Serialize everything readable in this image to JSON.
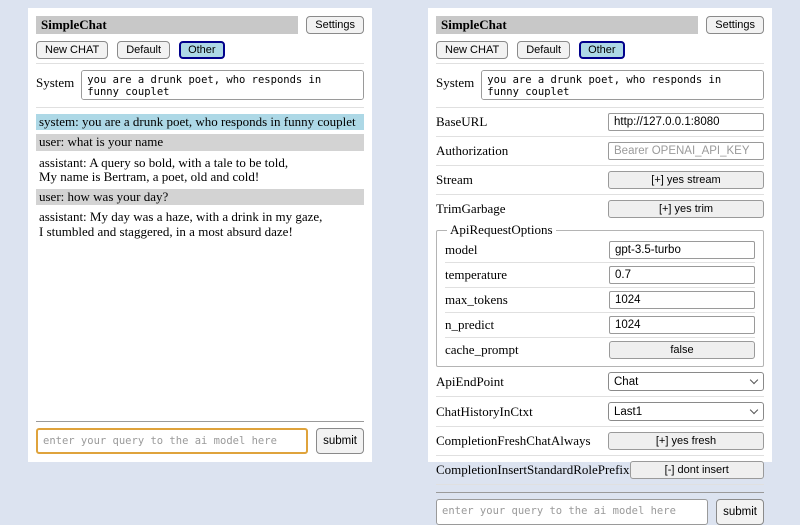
{
  "header": {
    "title": "SimpleChat",
    "settings_button": "Settings"
  },
  "toolbar": {
    "new_chat": "New CHAT",
    "default": "Default",
    "other": "Other",
    "selected": "Other"
  },
  "system_prompt": {
    "label": "System",
    "value": "you are a drunk poet, who responds in funny couplet"
  },
  "chat": {
    "messages": [
      {
        "role": "system",
        "text": "system: you are a drunk poet, who responds in funny couplet"
      },
      {
        "role": "user",
        "text": "user: what is your name"
      },
      {
        "role": "assistant",
        "text": "assistant: A query so bold, with a tale to be told,\nMy name is Bertram, a poet, old and cold!"
      },
      {
        "role": "user",
        "text": "user: how was your day?"
      },
      {
        "role": "assistant",
        "text": "assistant: My day was a haze, with a drink in my gaze,\nI stumbled and staggered, in a most absurd daze!"
      }
    ]
  },
  "settings": {
    "base_url": {
      "label": "BaseURL",
      "value": "http://127.0.0.1:8080"
    },
    "authorization": {
      "label": "Authorization",
      "placeholder": "Bearer OPENAI_API_KEY"
    },
    "stream": {
      "label": "Stream",
      "button": "[+] yes stream"
    },
    "trim_garbage": {
      "label": "TrimGarbage",
      "button": "[+] yes trim"
    },
    "api_request_options": {
      "legend": "ApiRequestOptions",
      "model": {
        "label": "model",
        "value": "gpt-3.5-turbo"
      },
      "temperature": {
        "label": "temperature",
        "value": "0.7"
      },
      "max_tokens": {
        "label": "max_tokens",
        "value": "1024"
      },
      "n_predict": {
        "label": "n_predict",
        "value": "1024"
      },
      "cache_prompt": {
        "label": "cache_prompt",
        "button": "false"
      }
    },
    "api_endpoint": {
      "label": "ApiEndPoint",
      "value": "Chat"
    },
    "chat_history_in_ctxt": {
      "label": "ChatHistoryInCtxt",
      "value": "Last1"
    },
    "completion_fresh_chat_always": {
      "label": "CompletionFreshChatAlways",
      "button": "[+] yes fresh"
    },
    "completion_insert_standard_role_prefix": {
      "label": "CompletionInsertStandardRolePrefix",
      "button": "[-] dont insert"
    }
  },
  "query": {
    "placeholder": "enter your query to the ai model here",
    "submit": "submit"
  },
  "colors": {
    "page_background": "#dce3f0",
    "panel_background": "#ffffff",
    "titlebar_background": "#c8c8c8",
    "selected_tab_background": "#add8e6",
    "selected_tab_border": "#00008b",
    "system_message_background": "#add8e6",
    "user_message_background": "#d3d3d3",
    "query_focus_border": "#dfa33c"
  }
}
